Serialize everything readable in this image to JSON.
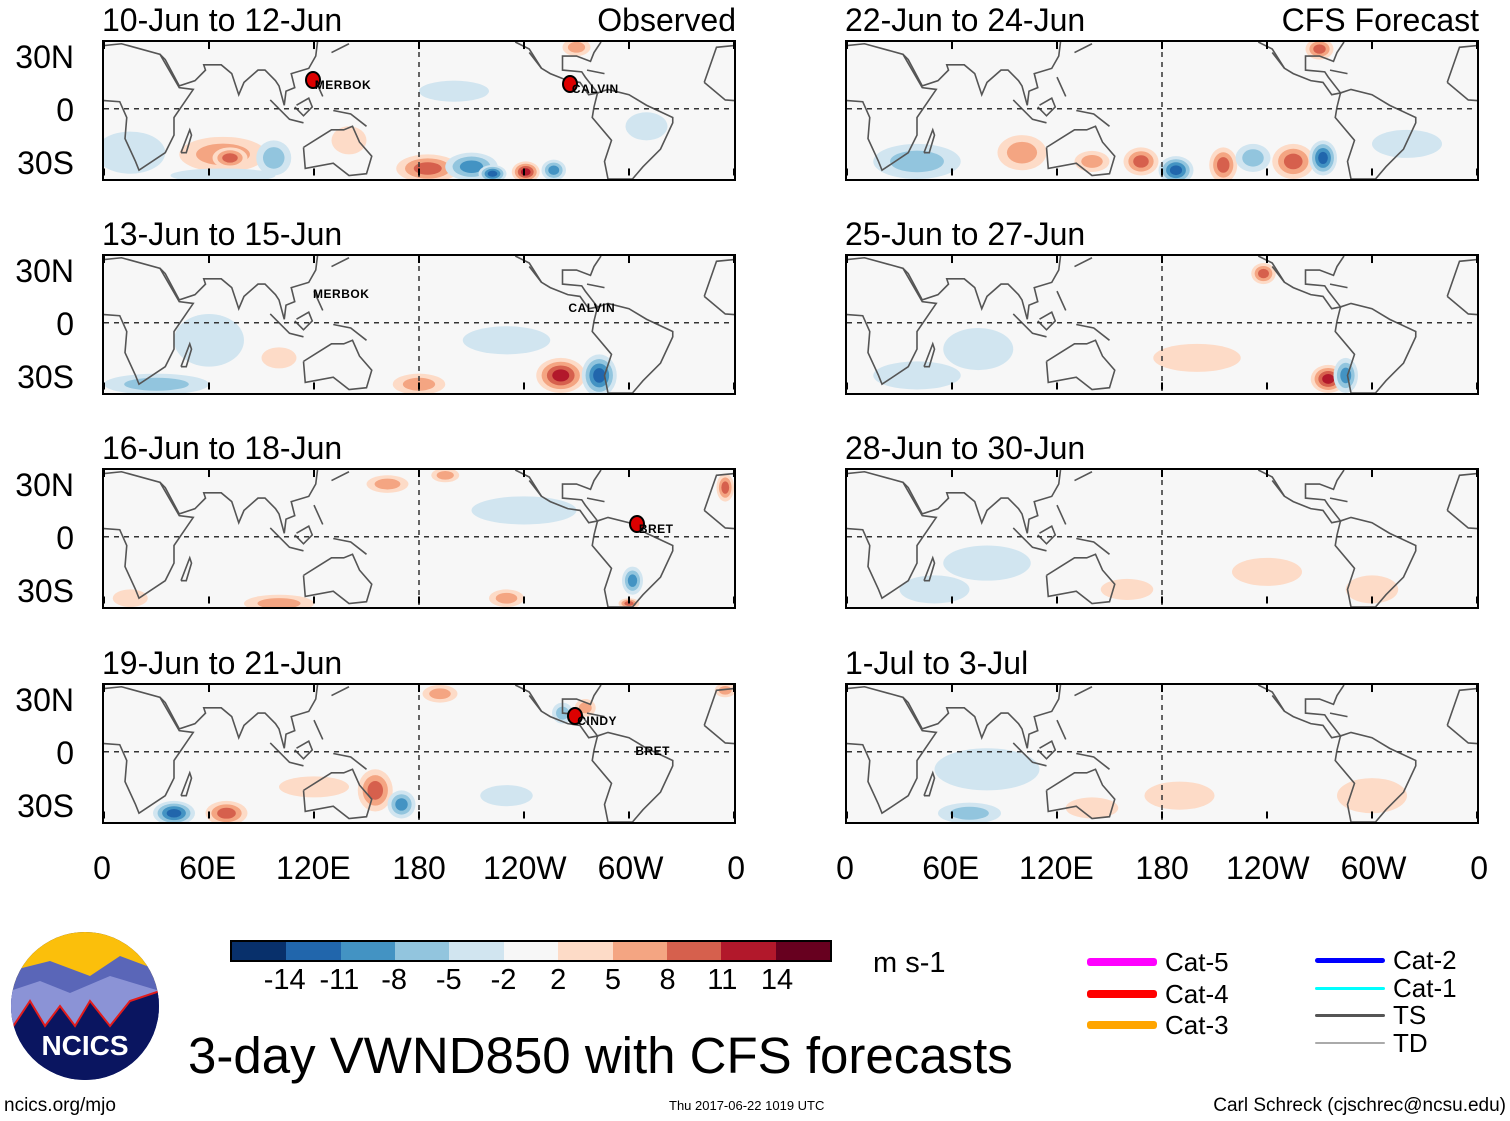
{
  "panels": [
    {
      "title": "10-Jun to 12-Jun",
      "right_title": "Observed",
      "storms": [
        {
          "name": "MERBOK",
          "lon": 118,
          "lat": 17,
          "marker": true
        },
        {
          "name": "CALVIN",
          "lon": 264,
          "lat": 15,
          "marker": true
        }
      ]
    },
    {
      "title": "13-Jun to 15-Jun",
      "storms": [
        {
          "name": "MERBOK",
          "lon": 117,
          "lat": 20,
          "marker": false
        },
        {
          "name": "CALVIN",
          "lon": 262,
          "lat": 12,
          "marker": false
        }
      ]
    },
    {
      "title": "16-Jun to 18-Jun",
      "storms": [
        {
          "name": "BRET",
          "lon": 302,
          "lat": 8,
          "marker": true
        }
      ]
    },
    {
      "title": "19-Jun to 21-Jun",
      "storms": [
        {
          "name": "CINDY",
          "lon": 267,
          "lat": 21,
          "marker": true
        },
        {
          "name": "BRET",
          "lon": 300,
          "lat": 4,
          "marker": false
        }
      ]
    },
    {
      "title": "22-Jun to 24-Jun",
      "right_title": "CFS Forecast",
      "storms": []
    },
    {
      "title": "25-Jun to 27-Jun",
      "storms": []
    },
    {
      "title": "28-Jun to 30-Jun",
      "storms": []
    },
    {
      "title": "1-Jul to 3-Jul",
      "storms": []
    }
  ],
  "lat_labels": [
    "30N",
    "0",
    "30S"
  ],
  "lon_labels": [
    "0",
    "60E",
    "120E",
    "180",
    "120W",
    "60W",
    "0"
  ],
  "colorbar": {
    "colors": [
      "#08306b",
      "#2166ac",
      "#4393c3",
      "#92c5de",
      "#d1e5f0",
      "#f7f7f7",
      "#fddbc7",
      "#f4a582",
      "#d6604d",
      "#b2182b",
      "#67001f"
    ],
    "labels": [
      "-14",
      "-11",
      "-8",
      "-5",
      "-2",
      "2",
      "5",
      "8",
      "11",
      "14"
    ],
    "units": "m s-1"
  },
  "legend": [
    {
      "label": "Cat-5",
      "color": "#ff00ff"
    },
    {
      "label": "Cat-4",
      "color": "#ff0000"
    },
    {
      "label": "Cat-3",
      "color": "#ffa500"
    },
    {
      "label": "Cat-2",
      "color": "#0000ff"
    },
    {
      "label": "Cat-1",
      "color": "#00ffff"
    },
    {
      "label": "TS",
      "color": "#555555"
    },
    {
      "label": "TD",
      "color": "#aaaaaa"
    }
  ],
  "title": "3-day VWND850 with CFS forecasts",
  "logo_text": "NCICS",
  "footer": {
    "left": "ncics.org/mjo",
    "center": "Thu 2017-06-22 1019 UTC",
    "right": "Carl Schreck (cjschrec@ncsu.edu)"
  }
}
